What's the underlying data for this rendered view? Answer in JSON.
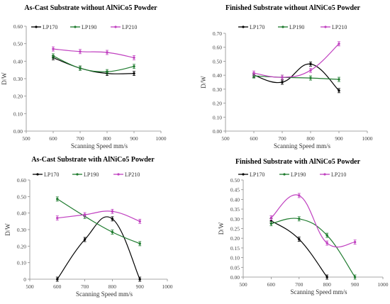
{
  "chart_data": [
    {
      "type": "line",
      "title": "As-Cast Substrate without AlNiCo5 Powder",
      "xlabel": "Scanning Speed mm/s",
      "ylabel": "D/W",
      "xlim": [
        500,
        1000
      ],
      "ylim": [
        0,
        0.6
      ],
      "xticks": [
        500,
        600,
        700,
        800,
        900,
        1000
      ],
      "yticks": [
        0,
        0.1,
        0.2,
        0.3,
        0.4,
        0.5,
        0.6
      ],
      "xtick_labels": [
        "500",
        "600",
        "700",
        "800",
        "900",
        "1000"
      ],
      "ytick_labels": [
        "0.00",
        "0.10",
        "0.20",
        "0.30",
        "0.40",
        "0.50",
        "0.60"
      ],
      "legend_position": "top",
      "x": [
        600,
        700,
        800,
        900
      ],
      "series": [
        {
          "name": "LP170",
          "color": "#000000",
          "values": [
            0.42,
            0.36,
            0.33,
            0.33
          ]
        },
        {
          "name": "LP190",
          "color": "#1e7b2e",
          "values": [
            0.43,
            0.36,
            0.34,
            0.37
          ]
        },
        {
          "name": "LP210",
          "color": "#c040c0",
          "values": [
            0.47,
            0.455,
            0.45,
            0.42
          ]
        }
      ]
    },
    {
      "type": "line",
      "title": "Finished Substrate without AlNiCo5 Powder",
      "xlabel": "Scanning Speed mm/s",
      "ylabel": "D/W",
      "xlim": [
        500,
        1000
      ],
      "ylim": [
        0,
        0.7
      ],
      "xticks": [
        500,
        600,
        700,
        800,
        900,
        1000
      ],
      "yticks": [
        0,
        0.1,
        0.2,
        0.3,
        0.4,
        0.5,
        0.6,
        0.7
      ],
      "xtick_labels": [
        "500",
        "600",
        "700",
        "800",
        "900",
        "1000"
      ],
      "ytick_labels": [
        "0.00",
        "0.10",
        "0.20",
        "0.30",
        "0.40",
        "0.50",
        "0.60",
        "0.70"
      ],
      "legend_position": "top",
      "x": [
        600,
        700,
        800,
        900
      ],
      "series": [
        {
          "name": "LP170",
          "color": "#000000",
          "values": [
            0.4,
            0.35,
            0.48,
            0.29
          ]
        },
        {
          "name": "LP190",
          "color": "#1e7b2e",
          "values": [
            0.395,
            0.385,
            0.38,
            0.37
          ]
        },
        {
          "name": "LP210",
          "color": "#c040c0",
          "values": [
            0.415,
            0.385,
            0.435,
            0.625
          ]
        }
      ]
    },
    {
      "type": "line",
      "title": "As-Cast Substrate with AlNiCo5 Powder",
      "xlabel": "Scanning Speed mm/s",
      "ylabel": "D/W",
      "xlim": [
        500,
        1000
      ],
      "ylim": [
        0,
        0.6
      ],
      "xticks": [
        500,
        600,
        700,
        800,
        900,
        1000
      ],
      "yticks": [
        0,
        0.1,
        0.2,
        0.3,
        0.4,
        0.5,
        0.6
      ],
      "xtick_labels": [
        "500",
        "600",
        "700",
        "800",
        "900",
        "1000"
      ],
      "ytick_labels": [
        "0",
        "0.10",
        "0.20",
        "0.30",
        "0.40",
        "0.50",
        "0.60"
      ],
      "legend_position": "top",
      "x": [
        600,
        700,
        800,
        900
      ],
      "series": [
        {
          "name": "LP170",
          "color": "#000000",
          "values": [
            0.0,
            0.24,
            0.365,
            0.0
          ]
        },
        {
          "name": "LP190",
          "color": "#1e7b2e",
          "values": [
            0.485,
            0.38,
            0.285,
            0.215
          ]
        },
        {
          "name": "LP210",
          "color": "#c040c0",
          "values": [
            0.37,
            0.39,
            0.41,
            0.35
          ]
        }
      ]
    },
    {
      "type": "line",
      "title": "Finished Substrate with AlNiCo5 Powder",
      "xlabel": "Scanning Speed mm/s",
      "ylabel": "D/W",
      "xlim": [
        500,
        1000
      ],
      "ylim": [
        0,
        0.5
      ],
      "xticks": [
        500,
        600,
        700,
        800,
        900,
        1000
      ],
      "yticks": [
        0,
        0.05,
        0.1,
        0.15,
        0.2,
        0.25,
        0.3,
        0.35,
        0.4,
        0.45,
        0.5
      ],
      "xtick_labels": [
        "500",
        "600",
        "700",
        "800",
        "900",
        "1000"
      ],
      "ytick_labels": [
        "0.00",
        "0.05",
        "0.10",
        "0.15",
        "0.20",
        "0.25",
        "0.30",
        "0.35",
        "0.40",
        "0.45",
        "0.50"
      ],
      "legend_position": "top",
      "x": [
        600,
        700,
        800,
        900
      ],
      "series": [
        {
          "name": "LP170",
          "color": "#000000",
          "values": [
            0.29,
            0.195,
            0.0,
            null
          ]
        },
        {
          "name": "LP190",
          "color": "#1e7b2e",
          "values": [
            0.275,
            0.3,
            0.215,
            0.0
          ]
        },
        {
          "name": "LP210",
          "color": "#c040c0",
          "values": [
            0.305,
            0.42,
            0.175,
            0.18
          ]
        }
      ]
    }
  ]
}
